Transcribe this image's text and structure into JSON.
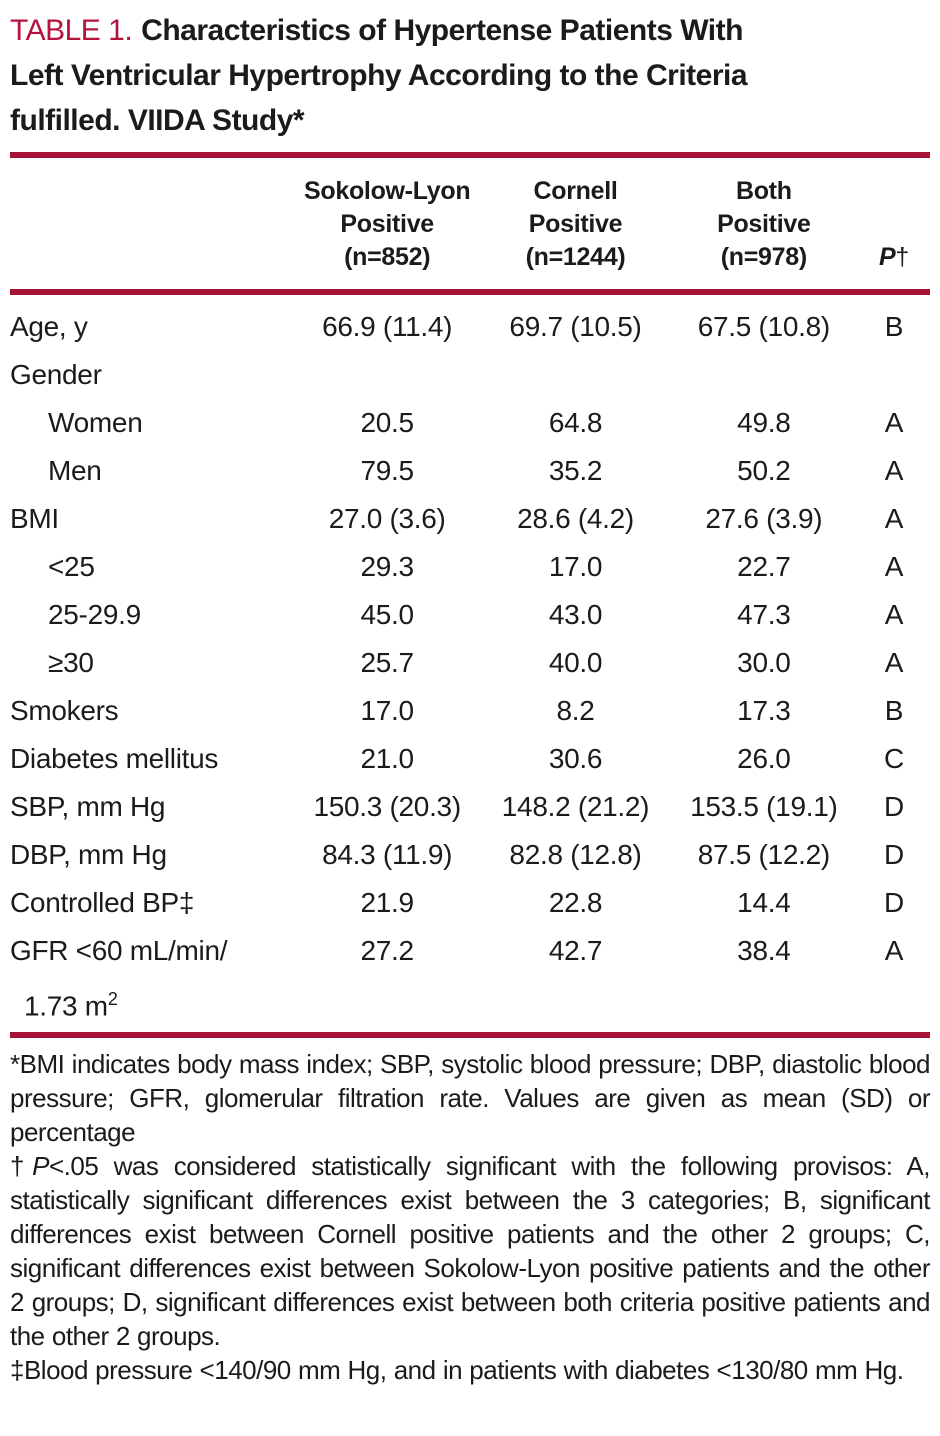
{
  "colors": {
    "accent_red_text": "#b5123c",
    "rule_red": "#a81338",
    "body_text": "#1b1b1d"
  },
  "title": {
    "label": "TABLE 1.",
    "text": "Characteristics of Hypertense Patients With\nLeft Ventricular Hypertrophy According to the Criteria\nfulfilled. VIIDA Study*"
  },
  "header": {
    "columns": [
      {
        "line1": "Sokolow-Lyon",
        "line2": "Positive",
        "line3": "(n=852)"
      },
      {
        "line1": "Cornell",
        "line2": "Positive",
        "line3": "(n=1244)"
      },
      {
        "line1": "Both",
        "line2": "Positive",
        "line3": "(n=978)"
      }
    ],
    "p": {
      "symbol": "P",
      "dagger": "†"
    }
  },
  "table": {
    "rows": [
      {
        "label": "Age, y",
        "indent": false,
        "v1": "66.9 (11.4)",
        "v2": "69.7 (10.5)",
        "v3": "67.5 (10.8)",
        "p": "B"
      },
      {
        "label": "Gender",
        "indent": false,
        "v1": "",
        "v2": "",
        "v3": "",
        "p": ""
      },
      {
        "label": "Women",
        "indent": true,
        "v1": "20.5",
        "v2": "64.8",
        "v3": "49.8",
        "p": "A"
      },
      {
        "label": "Men",
        "indent": true,
        "v1": "79.5",
        "v2": "35.2",
        "v3": "50.2",
        "p": "A"
      },
      {
        "label": "BMI",
        "indent": false,
        "v1": "27.0 (3.6)",
        "v2": "28.6 (4.2)",
        "v3": "27.6 (3.9)",
        "p": "A"
      },
      {
        "label": "<25",
        "indent": true,
        "v1": "29.3",
        "v2": "17.0",
        "v3": "22.7",
        "p": "A"
      },
      {
        "label": "25-29.9",
        "indent": true,
        "v1": "45.0",
        "v2": "43.0",
        "v3": "47.3",
        "p": "A"
      },
      {
        "label": "≥30",
        "indent": true,
        "v1": "25.7",
        "v2": "40.0",
        "v3": "30.0",
        "p": "A"
      },
      {
        "label": "Smokers",
        "indent": false,
        "v1": "17.0",
        "v2": "8.2",
        "v3": "17.3",
        "p": "B"
      },
      {
        "label": "Diabetes mellitus",
        "indent": false,
        "v1": "21.0",
        "v2": "30.6",
        "v3": "26.0",
        "p": "C"
      },
      {
        "label": "SBP, mm Hg",
        "indent": false,
        "v1": "150.3 (20.3)",
        "v2": "148.2 (21.2)",
        "v3": "153.5 (19.1)",
        "p": "D"
      },
      {
        "label": "DBP, mm Hg",
        "indent": false,
        "v1": "84.3 (11.9)",
        "v2": "82.8 (12.8)",
        "v3": "87.5 (12.2)",
        "p": "D"
      },
      {
        "label": "Controlled BP‡",
        "indent": false,
        "v1": "21.9",
        "v2": "22.8",
        "v3": "14.4",
        "p": "D"
      },
      {
        "label": "GFR <60 mL/min/",
        "label2": "1.73 m",
        "label2_sup": "2",
        "indent": false,
        "v1": "27.2",
        "v2": "42.7",
        "v3": "38.4",
        "p": "A"
      }
    ]
  },
  "footnotes": {
    "abbrev": "*BMI indicates body mass index; SBP, systolic blood pressure; DBP, diastolic blood pressure; GFR, glomerular filtration rate. Values are given as mean (SD) or percentage",
    "p_prefix": "†",
    "p_italic": "P",
    "p_rest": "<.05 was considered statistically significant with the following provisos: A, statistically significant differences exist between the 3 categories; B, significant differences exist between Cornell positive patients and the other 2 groups; C, significant differences exist between Sokolow-Lyon positive patients and the other 2 groups; D, significant differences exist between both criteria positive patients and the other 2 groups.",
    "bp": "‡Blood pressure <140/90 mm Hg, and in patients with diabetes <130/80 mm Hg."
  }
}
